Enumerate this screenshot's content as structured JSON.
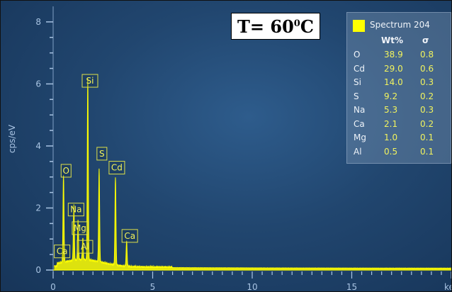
{
  "title": {
    "prefix": "T= 60",
    "superscript": "0",
    "suffix": "C"
  },
  "legend": {
    "series_name": "Spectrum 204",
    "swatch_color": "#ffff00",
    "col_wt": "Wt%",
    "col_sigma": "σ",
    "rows": [
      {
        "element": "O",
        "wt": "38.9",
        "sigma": "0.8"
      },
      {
        "element": "Cd",
        "wt": "29.0",
        "sigma": "0.6"
      },
      {
        "element": "Si",
        "wt": "14.0",
        "sigma": "0.3"
      },
      {
        "element": "S",
        "wt": "9.2",
        "sigma": "0.2"
      },
      {
        "element": "Na",
        "wt": "5.3",
        "sigma": "0.3"
      },
      {
        "element": "Ca",
        "wt": "2.1",
        "sigma": "0.2"
      },
      {
        "element": "Mg",
        "wt": "1.0",
        "sigma": "0.1"
      },
      {
        "element": "Al",
        "wt": "0.5",
        "sigma": "0.1"
      }
    ]
  },
  "chart_data": {
    "type": "area",
    "xlabel": "ke",
    "ylabel": "cps/eV",
    "xlim": [
      0,
      20
    ],
    "ylim": [
      0,
      8.5
    ],
    "x_ticks": [
      0,
      5,
      10,
      15
    ],
    "y_ticks": [
      0,
      2,
      4,
      6,
      8
    ],
    "series_color": "#ffff00",
    "peaks": [
      {
        "label": "O",
        "x": 0.52,
        "y": 2.9
      },
      {
        "label": "Na",
        "x": 1.04,
        "y": 1.9
      },
      {
        "label": "Mg",
        "x": 1.25,
        "y": 1.4
      },
      {
        "label": "Al",
        "x": 1.49,
        "y": 0.8
      },
      {
        "label": "Si",
        "x": 1.74,
        "y": 5.95
      },
      {
        "label": "S",
        "x": 2.31,
        "y": 3.1
      },
      {
        "label": "Cd",
        "x": 3.13,
        "y": 2.95
      },
      {
        "label": "Ca",
        "x": 3.69,
        "y": 0.9
      }
    ],
    "peak_labels": [
      {
        "text": "O",
        "x": 0.65,
        "y": 3.2
      },
      {
        "text": "Na",
        "x": 1.15,
        "y": 1.95
      },
      {
        "text": "Mg",
        "x": 1.35,
        "y": 1.35
      },
      {
        "text": "Al",
        "x": 1.6,
        "y": 0.75
      },
      {
        "text": "Ca",
        "x": 0.45,
        "y": 0.6
      },
      {
        "text": "Si",
        "x": 1.85,
        "y": 6.1
      },
      {
        "text": "S",
        "x": 2.45,
        "y": 3.75
      },
      {
        "text": "Cd",
        "x": 3.2,
        "y": 3.3
      },
      {
        "text": "Ca",
        "x": 3.85,
        "y": 1.1
      }
    ]
  }
}
